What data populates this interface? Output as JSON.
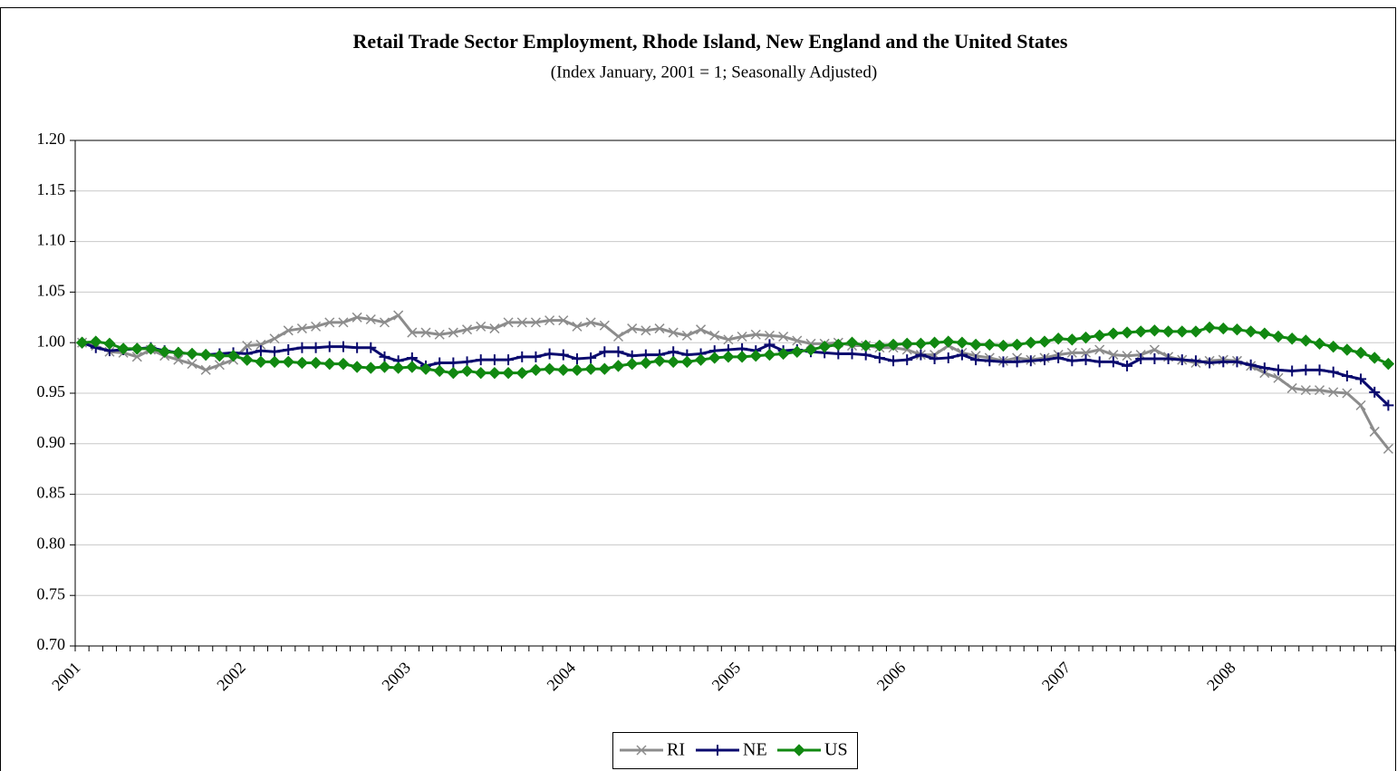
{
  "chart_data": {
    "type": "line",
    "title": "Retail Trade Sector Employment, Rhode Island, New England and the United States",
    "subtitle": "(Index January, 2001 = 1; Seasonally Adjusted)",
    "categories": [
      "2001",
      null,
      null,
      null,
      null,
      null,
      null,
      null,
      null,
      null,
      null,
      null,
      "2002",
      null,
      null,
      null,
      null,
      null,
      null,
      null,
      null,
      null,
      null,
      null,
      "2003",
      null,
      null,
      null,
      null,
      null,
      null,
      null,
      null,
      null,
      null,
      null,
      "2004",
      null,
      null,
      null,
      null,
      null,
      null,
      null,
      null,
      null,
      null,
      null,
      "2005",
      null,
      null,
      null,
      null,
      null,
      null,
      null,
      null,
      null,
      null,
      null,
      "2006",
      null,
      null,
      null,
      null,
      null,
      null,
      null,
      null,
      null,
      null,
      null,
      "2007",
      null,
      null,
      null,
      null,
      null,
      null,
      null,
      null,
      null,
      null,
      null,
      "2008",
      null,
      null,
      null,
      null,
      null,
      null,
      null,
      null,
      null,
      null,
      null
    ],
    "series": [
      {
        "name": "RI",
        "color": "#8c8c8c",
        "marker": "x",
        "values": [
          1.0,
          0.997,
          0.991,
          0.99,
          0.986,
          0.993,
          0.987,
          0.983,
          0.979,
          0.973,
          0.978,
          0.983,
          0.997,
          0.998,
          1.004,
          1.012,
          1.014,
          1.016,
          1.02,
          1.02,
          1.025,
          1.023,
          1.02,
          1.027,
          1.01,
          1.01,
          1.008,
          1.01,
          1.013,
          1.016,
          1.014,
          1.02,
          1.02,
          1.02,
          1.022,
          1.022,
          1.016,
          1.02,
          1.017,
          1.006,
          1.014,
          1.012,
          1.014,
          1.01,
          1.007,
          1.013,
          1.007,
          1.003,
          1.006,
          1.008,
          1.007,
          1.006,
          1.002,
          0.999,
          0.999,
          1.0,
          0.997,
          0.997,
          0.995,
          0.995,
          0.993,
          0.988,
          0.988,
          0.997,
          0.99,
          0.987,
          0.985,
          0.982,
          0.985,
          0.983,
          0.985,
          0.988,
          0.99,
          0.99,
          0.993,
          0.988,
          0.987,
          0.988,
          0.993,
          0.986,
          0.983,
          0.98,
          0.982,
          0.983,
          0.982,
          0.977,
          0.97,
          0.965,
          0.955,
          0.953,
          0.953,
          0.951,
          0.95,
          0.938,
          0.912,
          0.895
        ]
      },
      {
        "name": "NE",
        "color": "#0a0a6e",
        "marker": "+",
        "values": [
          1.0,
          0.995,
          0.992,
          0.993,
          0.994,
          0.995,
          0.992,
          0.99,
          0.989,
          0.988,
          0.989,
          0.99,
          0.989,
          0.992,
          0.991,
          0.993,
          0.995,
          0.995,
          0.996,
          0.996,
          0.995,
          0.995,
          0.986,
          0.982,
          0.985,
          0.977,
          0.98,
          0.98,
          0.981,
          0.983,
          0.983,
          0.983,
          0.986,
          0.986,
          0.989,
          0.988,
          0.984,
          0.985,
          0.991,
          0.991,
          0.987,
          0.988,
          0.988,
          0.991,
          0.988,
          0.989,
          0.992,
          0.993,
          0.994,
          0.992,
          0.998,
          0.992,
          0.993,
          0.991,
          0.99,
          0.989,
          0.989,
          0.988,
          0.985,
          0.982,
          0.983,
          0.988,
          0.984,
          0.985,
          0.988,
          0.983,
          0.982,
          0.981,
          0.981,
          0.982,
          0.983,
          0.985,
          0.982,
          0.983,
          0.981,
          0.981,
          0.977,
          0.984,
          0.984,
          0.984,
          0.983,
          0.982,
          0.98,
          0.981,
          0.981,
          0.978,
          0.975,
          0.973,
          0.972,
          0.973,
          0.973,
          0.971,
          0.967,
          0.964,
          0.951,
          0.938
        ]
      },
      {
        "name": "US",
        "color": "#118811",
        "marker": "diamond",
        "values": [
          1.0,
          1.001,
          0.999,
          0.994,
          0.994,
          0.994,
          0.991,
          0.99,
          0.989,
          0.988,
          0.987,
          0.987,
          0.983,
          0.981,
          0.981,
          0.981,
          0.98,
          0.98,
          0.979,
          0.979,
          0.976,
          0.975,
          0.976,
          0.975,
          0.976,
          0.974,
          0.972,
          0.97,
          0.972,
          0.97,
          0.97,
          0.97,
          0.97,
          0.973,
          0.974,
          0.973,
          0.973,
          0.974,
          0.974,
          0.977,
          0.979,
          0.98,
          0.982,
          0.981,
          0.981,
          0.983,
          0.985,
          0.986,
          0.986,
          0.987,
          0.988,
          0.989,
          0.991,
          0.993,
          0.996,
          0.998,
          1.0,
          0.997,
          0.997,
          0.998,
          0.999,
          0.999,
          1.0,
          1.001,
          1.0,
          0.998,
          0.998,
          0.997,
          0.998,
          1.0,
          1.001,
          1.004,
          1.003,
          1.005,
          1.007,
          1.009,
          1.01,
          1.011,
          1.012,
          1.011,
          1.011,
          1.011,
          1.015,
          1.014,
          1.013,
          1.011,
          1.009,
          1.006,
          1.004,
          1.002,
          0.999,
          0.996,
          0.993,
          0.99,
          0.985,
          0.979
        ]
      }
    ],
    "ylim": [
      0.7,
      1.2
    ],
    "yticks": [
      {
        "value": 0.7,
        "label": "0.70"
      },
      {
        "value": 0.75,
        "label": "0.75"
      },
      {
        "value": 0.8,
        "label": "0.80"
      },
      {
        "value": 0.85,
        "label": "0.85"
      },
      {
        "value": 0.9,
        "label": "0.90"
      },
      {
        "value": 0.95,
        "label": "0.95"
      },
      {
        "value": 1.0,
        "label": "1.00"
      },
      {
        "value": 1.05,
        "label": "1.05"
      },
      {
        "value": 1.1,
        "label": "1.10"
      },
      {
        "value": 1.15,
        "label": "1.15"
      },
      {
        "value": 1.2,
        "label": "1.20"
      }
    ],
    "grid": true,
    "legend": "bottom"
  }
}
